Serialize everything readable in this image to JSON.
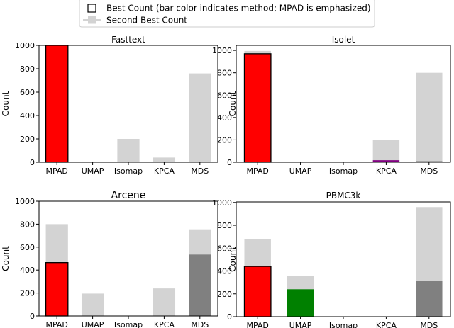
{
  "legend": {
    "best_label": "Best Count (bar color indicates method; MPAD is emphasized)",
    "second_label": "Second Best Count"
  },
  "colors": {
    "second_best": "#d3d3d3",
    "MPAD": "#ff0000",
    "UMAP": "#008000",
    "Isomap": "#1f77b4",
    "KPCA": "#800080",
    "MDS": "#808080",
    "bar_edge": "#000000"
  },
  "chart_data": [
    {
      "type": "bar",
      "title": "Fasttext",
      "ylabel": "Count",
      "categories": [
        "MPAD",
        "UMAP",
        "Isomap",
        "KPCA",
        "MDS"
      ],
      "ylim": [
        0,
        1000
      ],
      "yticks": [
        "0",
        "200",
        "400",
        "600",
        "800",
        "1000"
      ],
      "series": [
        {
          "name": "Best Count",
          "values": [
            1000,
            0,
            0,
            0,
            0
          ]
        },
        {
          "name": "Second Best Count",
          "values": [
            0,
            0,
            200,
            40,
            760
          ]
        }
      ]
    },
    {
      "type": "bar",
      "title": "Isolet",
      "ylabel": "Count",
      "categories": [
        "MPAD",
        "UMAP",
        "Isomap",
        "KPCA",
        "MDS"
      ],
      "ylim": [
        0,
        1045
      ],
      "yticks": [
        "0",
        "200",
        "400",
        "600",
        "800",
        "1000"
      ],
      "series": [
        {
          "name": "Best Count",
          "values": [
            970,
            0,
            0,
            18,
            10
          ]
        },
        {
          "name": "Second Best Count",
          "values": [
            995,
            0,
            0,
            200,
            800
          ]
        }
      ]
    },
    {
      "type": "bar",
      "title": "Arcene",
      "ylabel": "Count",
      "categories": [
        "MPAD",
        "UMAP",
        "Isomap",
        "KPCA",
        "MDS"
      ],
      "ylim": [
        0,
        1000
      ],
      "yticks": [
        "0",
        "200",
        "400",
        "600",
        "800",
        "1000"
      ],
      "series": [
        {
          "name": "Best Count",
          "values": [
            465,
            0,
            0,
            0,
            535
          ]
        },
        {
          "name": "Second Best Count",
          "values": [
            800,
            195,
            0,
            240,
            755
          ]
        }
      ]
    },
    {
      "type": "bar",
      "title": "PBMC3k",
      "ylabel": "Count",
      "categories": [
        "MPAD",
        "UMAP",
        "Isomap",
        "KPCA",
        "MDS"
      ],
      "ylim": [
        0,
        1005
      ],
      "yticks": [
        "0",
        "200",
        "400",
        "600",
        "800",
        "1000"
      ],
      "series": [
        {
          "name": "Best Count",
          "values": [
            440,
            240,
            0,
            0,
            315
          ]
        },
        {
          "name": "Second Best Count",
          "values": [
            680,
            355,
            0,
            0,
            960
          ]
        }
      ]
    }
  ]
}
